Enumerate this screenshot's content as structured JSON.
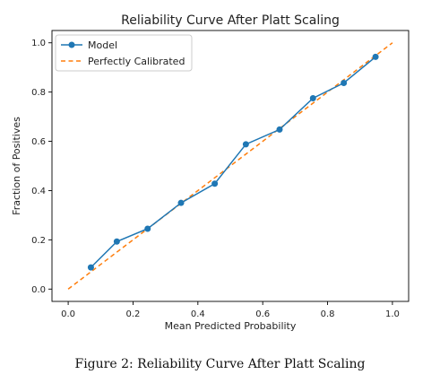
{
  "chart_data": {
    "type": "line",
    "title": "Reliability Curve After Platt Scaling",
    "xlabel": "Mean Predicted Probability",
    "ylabel": "Fraction of Positives",
    "xlim": [
      -0.05,
      1.05
    ],
    "ylim": [
      -0.05,
      1.05
    ],
    "xticks": [
      "0.0",
      "0.2",
      "0.4",
      "0.6",
      "0.8",
      "1.0"
    ],
    "yticks": [
      "0.0",
      "0.2",
      "0.4",
      "0.6",
      "0.8",
      "1.0"
    ],
    "grid": false,
    "legend_position": "top-left",
    "series": [
      {
        "name": "Model",
        "style": "solid-with-circle-markers",
        "color": "#1f77b4",
        "x": [
          0.07,
          0.15,
          0.245,
          0.348,
          0.452,
          0.548,
          0.652,
          0.755,
          0.85,
          0.948
        ],
        "y": [
          0.088,
          0.193,
          0.245,
          0.35,
          0.428,
          0.588,
          0.648,
          0.775,
          0.837,
          0.943
        ]
      },
      {
        "name": "Perfectly Calibrated",
        "style": "dashed",
        "color": "#ff7f0e",
        "x": [
          0.0,
          1.0
        ],
        "y": [
          0.0,
          1.0
        ]
      }
    ]
  },
  "caption": "Figure 2: Reliability Curve After Platt Scaling"
}
